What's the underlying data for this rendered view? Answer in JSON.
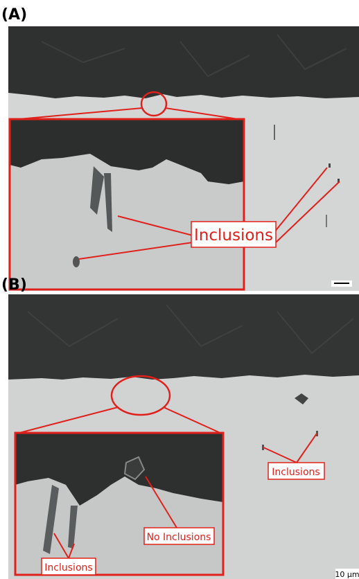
{
  "panels": [
    {
      "label": "(A)",
      "annotations": [
        "Inclusions"
      ]
    },
    {
      "label": "(B)",
      "annotations": [
        "Inclusions",
        "No Inclusions",
        "Inclusions"
      ],
      "scale_bar": "10 µm"
    }
  ]
}
